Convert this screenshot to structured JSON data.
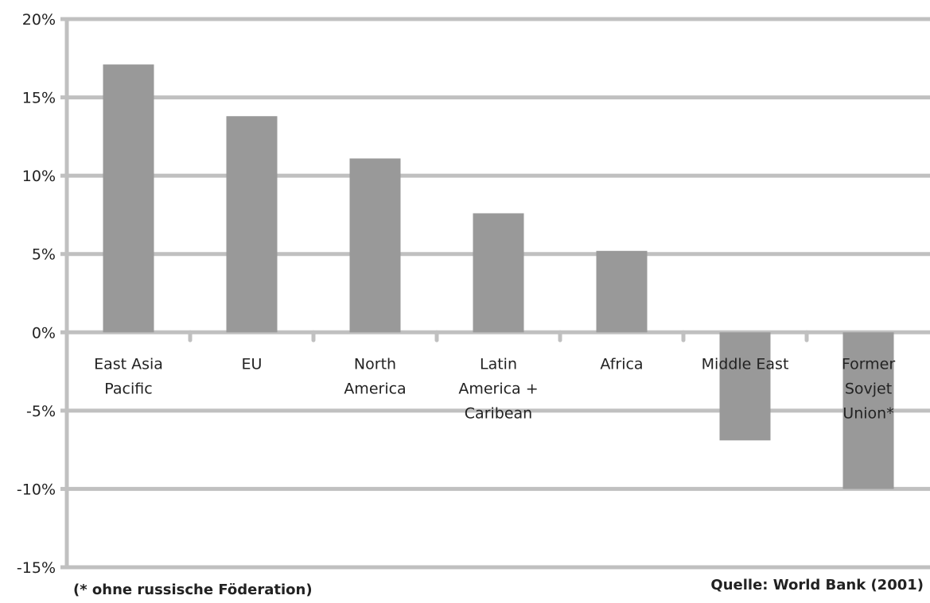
{
  "chart_data": {
    "type": "bar",
    "categories": [
      [
        "East Asia",
        "Pacific"
      ],
      [
        "EU"
      ],
      [
        "North",
        "America"
      ],
      [
        "Latin",
        "America +",
        "Caribean"
      ],
      [
        "Africa"
      ],
      [
        "Middle East"
      ],
      [
        "Former",
        "Sovjet",
        "Union*"
      ]
    ],
    "values": [
      17.1,
      13.8,
      11.1,
      7.6,
      5.2,
      -6.9,
      -10.0
    ],
    "ylim": [
      -15,
      20
    ],
    "yticks": [
      20,
      15,
      10,
      5,
      0,
      -5,
      -10,
      -15
    ],
    "ytick_labels": [
      "20%",
      "15%",
      "10%",
      "5%",
      "0%",
      "-5%",
      "-10%",
      "-15%"
    ],
    "grid": true,
    "bar_color": "#999999",
    "grid_color": "#c0c0c0"
  },
  "footnote": "(* ohne russische Föderation)",
  "source": "Quelle: World Bank (2001)"
}
